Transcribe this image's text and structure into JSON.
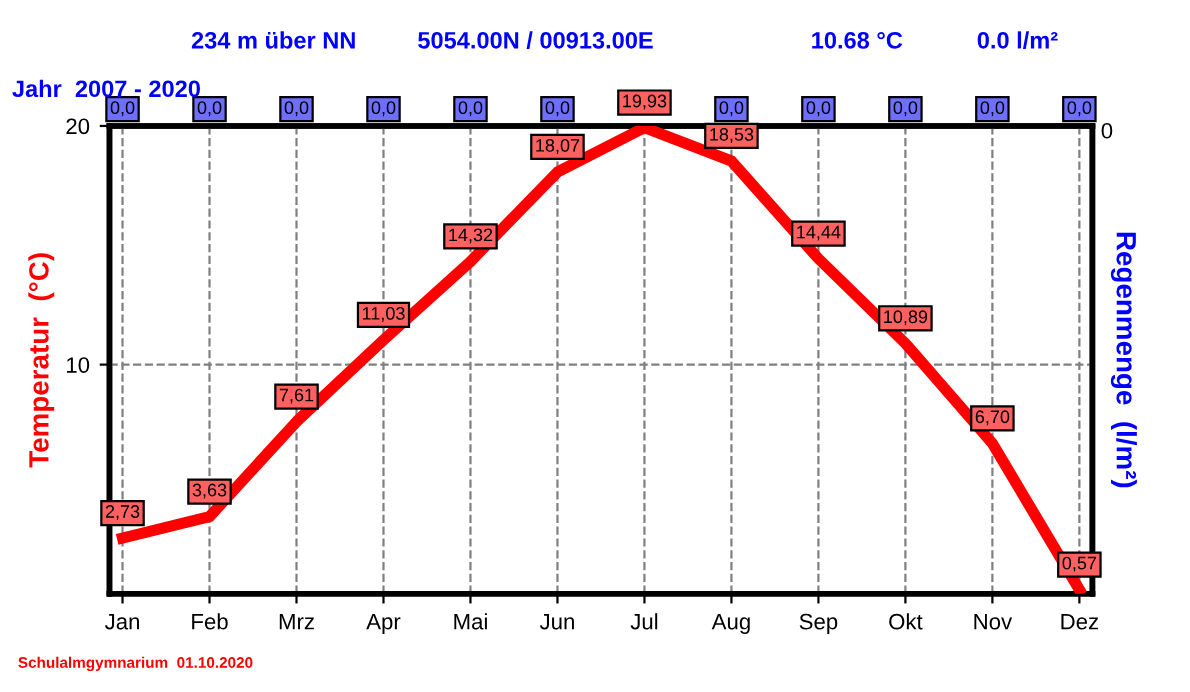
{
  "chart_data": {
    "type": "line",
    "title": "234 m über NN",
    "annotations": [
      "5054.00N / 00913.00E",
      "10.68 °C",
      "0.0 l/m²",
      "Jahr  2007 - 2020",
      "Schulalmgymnarium  01.10.2020",
      "0",
      {
        "text": "0,0",
        "x": "Jan"
      },
      {
        "text": "0,0",
        "x": "Feb"
      },
      {
        "text": "0,0",
        "x": "Mrz"
      },
      {
        "text": "0,0",
        "x": "Apr"
      },
      {
        "text": "0,0",
        "x": "Mai"
      },
      {
        "text": "0,0",
        "x": "Jun"
      },
      {
        "text": "0,0",
        "x": "Aug"
      },
      {
        "text": "0,0",
        "x": "Sep"
      },
      {
        "text": "0,0",
        "x": "Okt"
      },
      {
        "text": "0,0",
        "x": "Nov"
      },
      {
        "text": "0,0",
        "x": "Dez"
      }
    ],
    "ylabel": "Temperatur  (°C)",
    "y2label": "Regenmenge  (l/m²)",
    "categories": [
      "Jan",
      "Feb",
      "Mrz",
      "Apr",
      "Mai",
      "Jun",
      "Jul",
      "Aug",
      "Sep",
      "Okt",
      "Nov",
      "Dez"
    ],
    "series": [
      {
        "color": "#ff0000",
        "values": [
          2.73,
          3.63,
          7.61,
          11.03,
          14.32,
          18.07,
          19.93,
          18.53,
          14.44,
          10.89,
          6.7,
          0.57
        ],
        "value_labels": [
          "2,73",
          "3,63",
          "7,61",
          "11,03",
          "14,32",
          "18,07",
          "19,93",
          "18,53",
          "14,44",
          "10,89",
          "6,70",
          "0,57"
        ]
      }
    ],
    "ylim": [
      0.4,
      20
    ],
    "yticks": [
      10,
      20
    ],
    "grid": true
  }
}
